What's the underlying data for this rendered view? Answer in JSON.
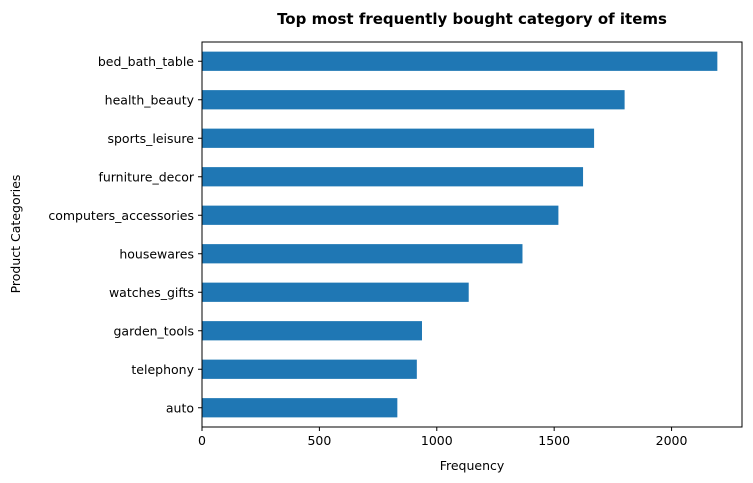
{
  "chart_data": {
    "type": "bar",
    "orientation": "horizontal",
    "title": "Top most frequently bought category of items",
    "xlabel": "Frequency",
    "ylabel": "Product Categories",
    "categories": [
      "bed_bath_table",
      "health_beauty",
      "sports_leisure",
      "furniture_decor",
      "computers_accessories",
      "housewares",
      "watches_gifts",
      "garden_tools",
      "telephony",
      "auto"
    ],
    "values": [
      2195,
      1800,
      1670,
      1623,
      1518,
      1365,
      1136,
      937,
      915,
      832
    ],
    "xlim": [
      0,
      2300
    ],
    "xticks": [
      0,
      500,
      1000,
      1500,
      2000
    ],
    "grid": false,
    "bar_color": "#1f77b4"
  }
}
